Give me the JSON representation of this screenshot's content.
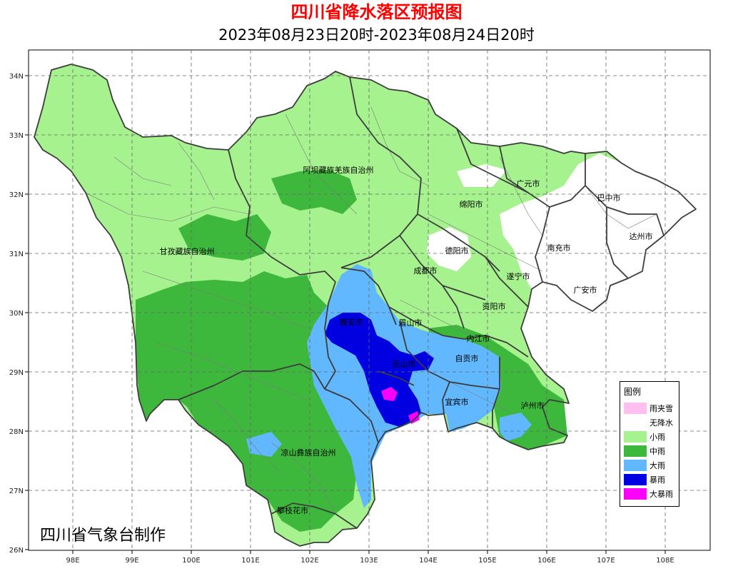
{
  "title": "四川省降水落区预报图",
  "subtitle": "2023年08月23日20时-2023年08月24日20时",
  "credit": "四川省气象台制作",
  "axes": {
    "lon_labels": [
      "98E",
      "99E",
      "100E",
      "101E",
      "102E",
      "103E",
      "104E",
      "105E",
      "106E",
      "107E",
      "108E"
    ],
    "lat_labels": [
      "34N",
      "33N",
      "32N",
      "31N",
      "30N",
      "29N",
      "28N",
      "27N",
      "26N"
    ]
  },
  "regions": [
    {
      "name": "阿坝藏族羌族自治州"
    },
    {
      "name": "甘孜藏族自治州"
    },
    {
      "name": "凉山彝族自治州"
    },
    {
      "name": "攀枝花市"
    },
    {
      "name": "广元市"
    },
    {
      "name": "巴中市"
    },
    {
      "name": "绵阳市"
    },
    {
      "name": "达州市"
    },
    {
      "name": "德阳市"
    },
    {
      "name": "南充市"
    },
    {
      "name": "成都市"
    },
    {
      "name": "遂宁市"
    },
    {
      "name": "广安市"
    },
    {
      "name": "资阳市"
    },
    {
      "name": "雅安市"
    },
    {
      "name": "眉山市"
    },
    {
      "name": "内江市"
    },
    {
      "name": "乐山市"
    },
    {
      "name": "自贡市"
    },
    {
      "name": "宜宾市"
    },
    {
      "name": "泸州市"
    }
  ],
  "legend": {
    "title": "图例",
    "items": [
      {
        "label": "雨夹雪",
        "color": "#ffc0f0"
      },
      {
        "label": "无降水",
        "color": "#ffffff"
      },
      {
        "label": "小雨",
        "color": "#a6f28f"
      },
      {
        "label": "中雨",
        "color": "#3db83d"
      },
      {
        "label": "大雨",
        "color": "#61b8ff"
      },
      {
        "label": "暴雨",
        "color": "#0000e1"
      },
      {
        "label": "大暴雨",
        "color": "#fa00fa"
      }
    ]
  }
}
